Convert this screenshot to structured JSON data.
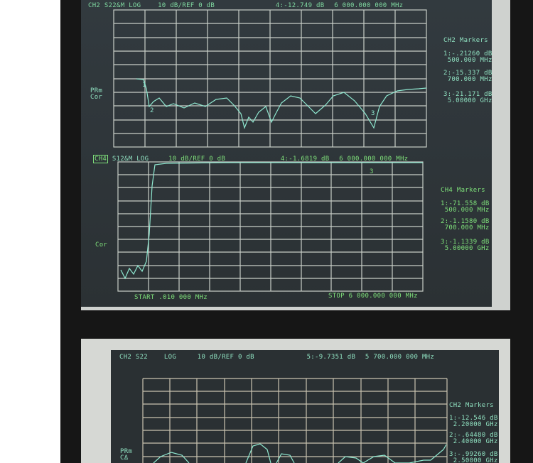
{
  "photo1": {
    "upper": {
      "header": {
        "channel": "CH2",
        "param": "S22&M",
        "format": "LOG",
        "scale": "10 dB/REF 0 dB",
        "marker": "4:-12.749 dB",
        "freq": "6 000.000 000 MHz"
      },
      "left_labels": [
        "PRm",
        "Cor"
      ],
      "markers_title": "CH2 Markers",
      "markers": [
        {
          "value": "1:-.21260 dB",
          "freq": "500.000 MHz"
        },
        {
          "value": "2:-15.337 dB",
          "freq": "700.000 MHz"
        },
        {
          "value": "3:-21.171 dB",
          "freq": "5.00000 GHz"
        }
      ]
    },
    "lower": {
      "header": {
        "channel": "CH4",
        "param": "S12&M",
        "format": "LOG",
        "scale": "10 dB/REF 0 dB",
        "marker": "4:-1.6819 dB",
        "freq": "6 000.000 000 MHz"
      },
      "left_labels": [
        "Cor"
      ],
      "markers_title": "CH4 Markers",
      "markers": [
        {
          "value": "1:-71.558 dB",
          "freq": "500.000 MHz"
        },
        {
          "value": "2:-1.1580 dB",
          "freq": "700.000 MHz"
        },
        {
          "value": "3:-1.1339 dB",
          "freq": "5.00000 GHz"
        }
      ],
      "start": "START  .010 000 MHz",
      "stop": "STOP 6 000.000 000 MHz"
    }
  },
  "photo2": {
    "header": {
      "channel": "CH2",
      "param": "S22",
      "format": "LOG",
      "scale": "10 dB/REF 0 dB",
      "marker": "5:-9.7351 dB",
      "freq": "5 700.000 000 MHz"
    },
    "left_labels": [
      "PRm",
      "CΔ"
    ],
    "markers_title": "CH2 Markers",
    "markers": [
      {
        "value": "1:-12.546 dB",
        "freq": "2.20000 GHz"
      },
      {
        "value": "2:-.64480 dB",
        "freq": "2.40000 GHz"
      },
      {
        "value": "3:-.99260 dB",
        "freq": "2.50000 GHz"
      }
    ]
  }
}
